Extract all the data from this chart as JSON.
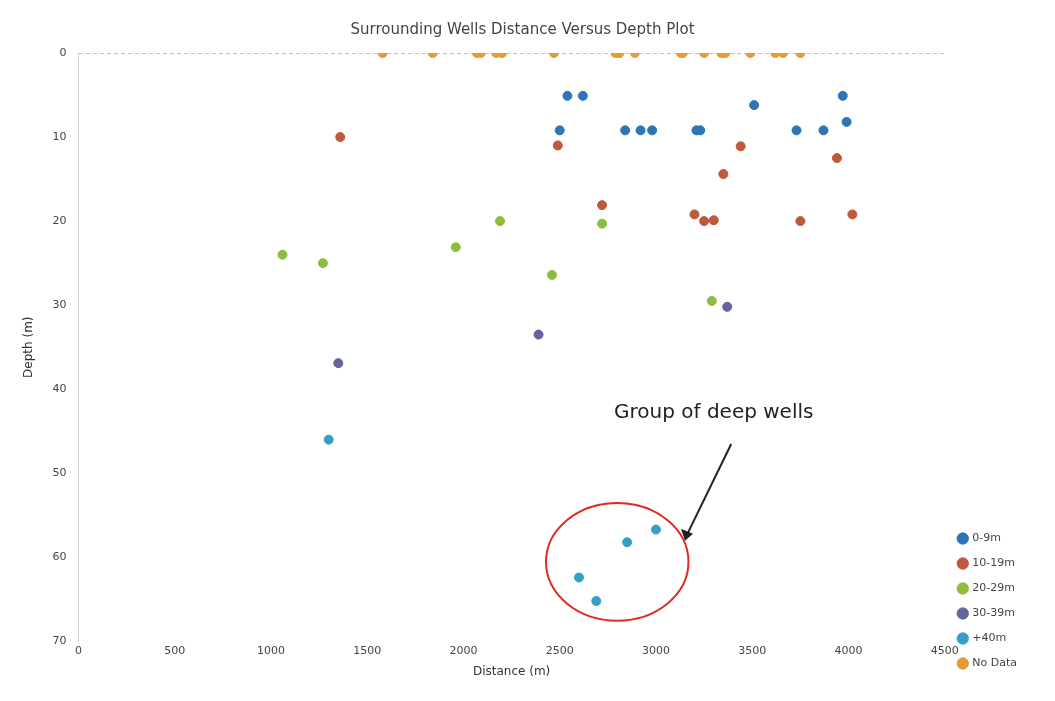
{
  "chart_data": {
    "type": "scatter",
    "title": "Surrounding Wells Distance Versus Depth Plot",
    "xlabel": "Distance (m)",
    "ylabel": "Depth (m)",
    "xlim": [
      0,
      4500
    ],
    "xticks": [
      0,
      500,
      1000,
      1500,
      2000,
      2500,
      3000,
      3500,
      4000,
      4500
    ],
    "ylim": [
      70,
      0
    ],
    "yticks": [
      0,
      10,
      20,
      30,
      40,
      50,
      60,
      70
    ],
    "grid": false,
    "legend": "bottom right",
    "marker": "circle",
    "annotations": [
      "Group of deep wells"
    ],
    "series": [
      {
        "name": "0-9m",
        "color": "#2e75b6",
        "x": [
          2540,
          2620,
          2500,
          2840,
          2920,
          2980,
          3210,
          3230,
          3510,
          3730,
          3870,
          3970,
          3990
        ],
        "values": [
          5.1,
          5.1,
          9.2,
          9.2,
          9.2,
          9.2,
          9.2,
          9.2,
          6.2,
          9.2,
          9.2,
          5.1,
          8.2
        ]
      },
      {
        "name": "10-19m",
        "color": "#c0583c",
        "x": [
          1360,
          2490,
          2720,
          3200,
          3250,
          3300,
          3440,
          3350,
          3750,
          3940,
          4020
        ],
        "values": [
          10,
          11,
          18.1,
          19.2,
          20,
          19.9,
          11.1,
          14.4,
          20,
          12.5,
          19.2
        ]
      },
      {
        "name": "20-29m",
        "color": "#8dbd3f",
        "x": [
          1060,
          1270,
          1960,
          2190,
          2720,
          2460,
          3290
        ],
        "values": [
          24,
          25,
          23.1,
          20,
          20.3,
          26.4,
          29.5
        ]
      },
      {
        "name": "30-39m",
        "color": "#64649e",
        "x": [
          1350,
          2390,
          3370
        ],
        "values": [
          36.9,
          33.5,
          30.2
        ]
      },
      {
        "name": "+40m",
        "color": "#35a0c6",
        "x": [
          1300,
          2600,
          2690,
          2850,
          3000
        ],
        "values": [
          46,
          62.4,
          65.2,
          58.2,
          56.7
        ]
      },
      {
        "name": "No Data",
        "color": "#e89a34",
        "x": [
          1580,
          1840,
          2070,
          2090,
          2170,
          2200,
          2470,
          2790,
          2810,
          2890,
          3130,
          3140,
          3250,
          3340,
          3360,
          3490,
          3620,
          3660,
          3750
        ],
        "values": [
          0,
          0,
          0,
          0,
          0,
          0,
          0,
          0,
          0,
          0,
          0,
          0,
          0,
          0,
          0,
          0,
          0,
          0,
          0
        ]
      }
    ]
  }
}
